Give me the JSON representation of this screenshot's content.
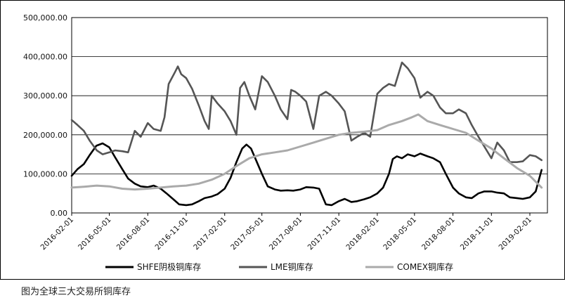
{
  "caption": "图为全球三大交易所铜库存",
  "chart_data": {
    "type": "line",
    "title": "",
    "xlabel": "",
    "ylabel": "",
    "ylim": [
      0,
      500000
    ],
    "yticks": [
      {
        "value": 0,
        "label": "0.00"
      },
      {
        "value": 100000,
        "label": "100,000.00"
      },
      {
        "value": 200000,
        "label": "200,000.00"
      },
      {
        "value": 300000,
        "label": "300,000.00"
      },
      {
        "value": 400000,
        "label": "400,000.00"
      },
      {
        "value": 500000,
        "label": "500,000.00"
      }
    ],
    "xrange": [
      "2016-02-01",
      "2019-03-15"
    ],
    "xticks": [
      "2016-02-01",
      "2016-05-01",
      "2016-08-01",
      "2016-11-01",
      "2017-02-01",
      "2017-05-01",
      "2017-08-01",
      "2017-11-01",
      "2018-02-01",
      "2018-05-01",
      "2018-08-01",
      "2018-11-01",
      "2019-02-01"
    ],
    "grid": "horizontal",
    "legend_position": "bottom",
    "series": [
      {
        "name": "SHFE阴极铜库存",
        "color": "#000000",
        "points": [
          [
            "2016-02-01",
            95000
          ],
          [
            "2016-02-15",
            112000
          ],
          [
            "2016-03-01",
            125000
          ],
          [
            "2016-03-15",
            148000
          ],
          [
            "2016-03-31",
            172000
          ],
          [
            "2016-04-15",
            178000
          ],
          [
            "2016-05-01",
            168000
          ],
          [
            "2016-05-15",
            142000
          ],
          [
            "2016-06-01",
            112000
          ],
          [
            "2016-06-15",
            88000
          ],
          [
            "2016-07-01",
            75000
          ],
          [
            "2016-07-15",
            68000
          ],
          [
            "2016-08-01",
            66000
          ],
          [
            "2016-08-15",
            70000
          ],
          [
            "2016-09-01",
            62000
          ],
          [
            "2016-09-15",
            50000
          ],
          [
            "2016-10-01",
            35000
          ],
          [
            "2016-10-15",
            22000
          ],
          [
            "2016-11-01",
            20000
          ],
          [
            "2016-11-15",
            22000
          ],
          [
            "2016-12-01",
            30000
          ],
          [
            "2016-12-15",
            38000
          ],
          [
            "2017-01-01",
            42000
          ],
          [
            "2017-01-15",
            48000
          ],
          [
            "2017-02-01",
            62000
          ],
          [
            "2017-02-15",
            90000
          ],
          [
            "2017-03-01",
            130000
          ],
          [
            "2017-03-15",
            165000
          ],
          [
            "2017-03-25",
            175000
          ],
          [
            "2017-04-05",
            165000
          ],
          [
            "2017-04-15",
            140000
          ],
          [
            "2017-05-01",
            100000
          ],
          [
            "2017-05-15",
            68000
          ],
          [
            "2017-06-01",
            60000
          ],
          [
            "2017-06-15",
            57000
          ],
          [
            "2017-07-01",
            58000
          ],
          [
            "2017-07-15",
            57000
          ],
          [
            "2017-08-01",
            60000
          ],
          [
            "2017-08-15",
            66000
          ],
          [
            "2017-09-01",
            65000
          ],
          [
            "2017-09-15",
            62000
          ],
          [
            "2017-10-01",
            22000
          ],
          [
            "2017-10-15",
            20000
          ],
          [
            "2017-11-01",
            30000
          ],
          [
            "2017-11-15",
            36000
          ],
          [
            "2017-12-01",
            28000
          ],
          [
            "2017-12-15",
            30000
          ],
          [
            "2018-01-01",
            35000
          ],
          [
            "2018-01-15",
            40000
          ],
          [
            "2018-02-01",
            50000
          ],
          [
            "2018-02-15",
            65000
          ],
          [
            "2018-03-01",
            100000
          ],
          [
            "2018-03-10",
            138000
          ],
          [
            "2018-03-20",
            145000
          ],
          [
            "2018-04-01",
            140000
          ],
          [
            "2018-04-15",
            150000
          ],
          [
            "2018-05-01",
            145000
          ],
          [
            "2018-05-15",
            152000
          ],
          [
            "2018-06-01",
            145000
          ],
          [
            "2018-06-15",
            140000
          ],
          [
            "2018-07-01",
            130000
          ],
          [
            "2018-07-15",
            100000
          ],
          [
            "2018-08-01",
            65000
          ],
          [
            "2018-08-15",
            50000
          ],
          [
            "2018-09-01",
            40000
          ],
          [
            "2018-09-15",
            38000
          ],
          [
            "2018-10-01",
            50000
          ],
          [
            "2018-10-15",
            55000
          ],
          [
            "2018-11-01",
            55000
          ],
          [
            "2018-11-15",
            52000
          ],
          [
            "2018-12-01",
            50000
          ],
          [
            "2018-12-15",
            40000
          ],
          [
            "2019-01-01",
            38000
          ],
          [
            "2019-01-15",
            36000
          ],
          [
            "2019-02-01",
            40000
          ],
          [
            "2019-02-15",
            55000
          ],
          [
            "2019-03-01",
            110000
          ]
        ]
      },
      {
        "name": "LME铜库存",
        "color": "#555555",
        "points": [
          [
            "2016-02-01",
            238000
          ],
          [
            "2016-02-15",
            225000
          ],
          [
            "2016-03-01",
            210000
          ],
          [
            "2016-03-15",
            185000
          ],
          [
            "2016-04-01",
            160000
          ],
          [
            "2016-04-15",
            150000
          ],
          [
            "2016-05-01",
            155000
          ],
          [
            "2016-05-15",
            160000
          ],
          [
            "2016-06-01",
            158000
          ],
          [
            "2016-06-15",
            155000
          ],
          [
            "2016-07-01",
            210000
          ],
          [
            "2016-07-15",
            195000
          ],
          [
            "2016-08-01",
            230000
          ],
          [
            "2016-08-15",
            215000
          ],
          [
            "2016-09-01",
            210000
          ],
          [
            "2016-09-10",
            245000
          ],
          [
            "2016-09-20",
            330000
          ],
          [
            "2016-10-05",
            360000
          ],
          [
            "2016-10-12",
            375000
          ],
          [
            "2016-10-20",
            355000
          ],
          [
            "2016-11-01",
            345000
          ],
          [
            "2016-11-15",
            318000
          ],
          [
            "2016-12-01",
            275000
          ],
          [
            "2016-12-15",
            235000
          ],
          [
            "2016-12-25",
            215000
          ],
          [
            "2017-01-01",
            300000
          ],
          [
            "2017-01-15",
            280000
          ],
          [
            "2017-02-01",
            260000
          ],
          [
            "2017-02-15",
            235000
          ],
          [
            "2017-03-01",
            200000
          ],
          [
            "2017-03-10",
            320000
          ],
          [
            "2017-03-20",
            335000
          ],
          [
            "2017-04-01",
            300000
          ],
          [
            "2017-04-15",
            265000
          ],
          [
            "2017-05-01",
            350000
          ],
          [
            "2017-05-15",
            335000
          ],
          [
            "2017-06-01",
            300000
          ],
          [
            "2017-06-15",
            265000
          ],
          [
            "2017-07-01",
            240000
          ],
          [
            "2017-07-10",
            315000
          ],
          [
            "2017-07-20",
            310000
          ],
          [
            "2017-08-01",
            300000
          ],
          [
            "2017-08-15",
            285000
          ],
          [
            "2017-09-01",
            215000
          ],
          [
            "2017-09-15",
            300000
          ],
          [
            "2017-10-01",
            310000
          ],
          [
            "2017-10-15",
            300000
          ],
          [
            "2017-11-01",
            280000
          ],
          [
            "2017-11-15",
            260000
          ],
          [
            "2017-12-01",
            185000
          ],
          [
            "2017-12-15",
            195000
          ],
          [
            "2018-01-01",
            205000
          ],
          [
            "2018-01-15",
            195000
          ],
          [
            "2018-02-01",
            305000
          ],
          [
            "2018-02-15",
            320000
          ],
          [
            "2018-03-01",
            330000
          ],
          [
            "2018-03-15",
            325000
          ],
          [
            "2018-04-01",
            385000
          ],
          [
            "2018-04-15",
            370000
          ],
          [
            "2018-05-01",
            345000
          ],
          [
            "2018-05-15",
            295000
          ],
          [
            "2018-06-01",
            310000
          ],
          [
            "2018-06-15",
            300000
          ],
          [
            "2018-07-01",
            270000
          ],
          [
            "2018-07-15",
            255000
          ],
          [
            "2018-08-01",
            255000
          ],
          [
            "2018-08-15",
            265000
          ],
          [
            "2018-09-01",
            255000
          ],
          [
            "2018-09-15",
            225000
          ],
          [
            "2018-10-01",
            195000
          ],
          [
            "2018-10-15",
            170000
          ],
          [
            "2018-11-01",
            140000
          ],
          [
            "2018-11-15",
            180000
          ],
          [
            "2018-12-01",
            160000
          ],
          [
            "2018-12-15",
            130000
          ],
          [
            "2019-01-01",
            130000
          ],
          [
            "2019-01-15",
            132000
          ],
          [
            "2019-02-01",
            148000
          ],
          [
            "2019-02-15",
            145000
          ],
          [
            "2019-03-01",
            135000
          ]
        ]
      },
      {
        "name": "COMEX铜库存",
        "color": "#aaaaaa",
        "points": [
          [
            "2016-02-01",
            65000
          ],
          [
            "2016-03-01",
            67000
          ],
          [
            "2016-04-01",
            70000
          ],
          [
            "2016-05-01",
            68000
          ],
          [
            "2016-06-01",
            62000
          ],
          [
            "2016-07-01",
            60000
          ],
          [
            "2016-08-01",
            62000
          ],
          [
            "2016-09-01",
            65000
          ],
          [
            "2016-10-01",
            68000
          ],
          [
            "2016-11-01",
            70000
          ],
          [
            "2016-12-01",
            75000
          ],
          [
            "2017-01-01",
            85000
          ],
          [
            "2017-02-01",
            100000
          ],
          [
            "2017-03-01",
            120000
          ],
          [
            "2017-04-01",
            140000
          ],
          [
            "2017-05-01",
            150000
          ],
          [
            "2017-06-01",
            155000
          ],
          [
            "2017-07-01",
            160000
          ],
          [
            "2017-08-01",
            170000
          ],
          [
            "2017-09-01",
            180000
          ],
          [
            "2017-10-01",
            190000
          ],
          [
            "2017-11-01",
            200000
          ],
          [
            "2017-12-01",
            205000
          ],
          [
            "2018-01-01",
            208000
          ],
          [
            "2018-02-01",
            212000
          ],
          [
            "2018-03-01",
            225000
          ],
          [
            "2018-04-01",
            235000
          ],
          [
            "2018-04-25",
            245000
          ],
          [
            "2018-05-10",
            252000
          ],
          [
            "2018-06-01",
            235000
          ],
          [
            "2018-07-01",
            225000
          ],
          [
            "2018-08-01",
            215000
          ],
          [
            "2018-09-01",
            205000
          ],
          [
            "2018-10-01",
            185000
          ],
          [
            "2018-11-01",
            165000
          ],
          [
            "2018-12-01",
            140000
          ],
          [
            "2019-01-01",
            115000
          ],
          [
            "2019-02-01",
            95000
          ],
          [
            "2019-03-01",
            65000
          ]
        ]
      }
    ]
  }
}
